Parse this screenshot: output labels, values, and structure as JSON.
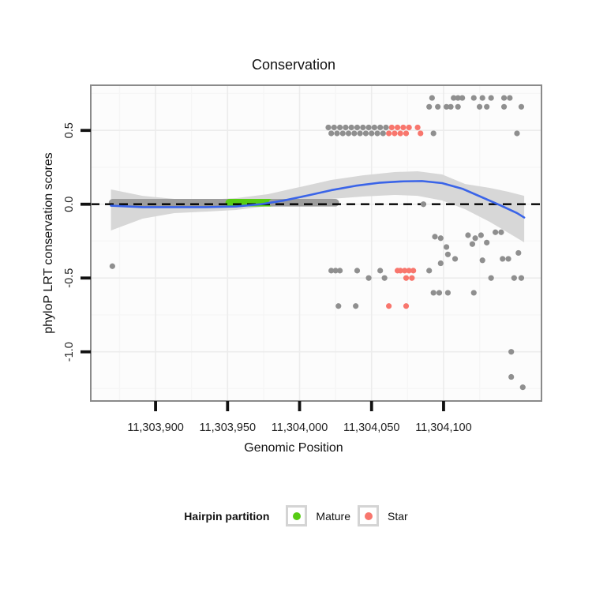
{
  "page": {
    "background": "#ffffff"
  },
  "chart_data": {
    "type": "scatter",
    "title": "Conservation",
    "xlabel": "Genomic Position",
    "ylabel": "phyloP LRT conservation scores",
    "xlim": [
      11303855,
      11304168
    ],
    "ylim": [
      -1.333,
      0.806
    ],
    "x_ticks": [
      {
        "value": 11303900,
        "label": "11,303,900"
      },
      {
        "value": 11303950,
        "label": "11,303,950"
      },
      {
        "value": 11304000,
        "label": "11,304,000"
      },
      {
        "value": 11304050,
        "label": "11,304,050"
      },
      {
        "value": 11304100,
        "label": "11,304,100"
      }
    ],
    "y_ticks": [
      {
        "value": 0.5,
        "label": "0.5"
      },
      {
        "value": 0.0,
        "label": "0.0"
      },
      {
        "value": -0.5,
        "label": "-0.5"
      },
      {
        "value": -1.0,
        "label": "-1.0"
      }
    ],
    "x_minor": [
      11303875,
      11303925,
      11303975,
      11304025,
      11304075,
      11304125
    ],
    "y_minor": [
      0.75,
      0.25,
      -0.25,
      -0.75,
      -1.25
    ],
    "grid": true,
    "legend_position": "bottom",
    "colors": {
      "mature": "#57CC14",
      "star": "#F8766D",
      "other": "#8F8F8F",
      "zero_run_other": "#9D9D9D",
      "smooth_line": "#3A64E8",
      "ci_ribbon": "#D7D7D7",
      "zero_line": "#000000",
      "panel_bg": "#FCFCFC",
      "grid_major": "#ECECEC",
      "grid_minor": "#F6F6F6",
      "panel_border": "#8A8A8A"
    },
    "zero_line": {
      "y": 0.0,
      "style": "dashed"
    },
    "zero_runs": [
      {
        "from": 11303870,
        "to": 11303951,
        "score": 0.01,
        "partition": "other"
      },
      {
        "from": 11303951,
        "to": 11303981,
        "score": 0.01,
        "partition": "mature"
      },
      {
        "from": 11303981,
        "to": 11304025,
        "score": 0.01,
        "partition": "other"
      }
    ],
    "smooth_line": [
      [
        11303869,
        -0.01
      ],
      [
        11303891,
        -0.02
      ],
      [
        11303913,
        -0.02
      ],
      [
        11303935,
        -0.02
      ],
      [
        11303956,
        -0.015
      ],
      [
        11303973,
        0.0
      ],
      [
        11303989,
        0.025
      ],
      [
        11304006,
        0.06
      ],
      [
        11304022,
        0.095
      ],
      [
        11304039,
        0.125
      ],
      [
        11304055,
        0.145
      ],
      [
        11304072,
        0.155
      ],
      [
        11304085,
        0.157
      ],
      [
        11304099,
        0.143
      ],
      [
        11304113,
        0.105
      ],
      [
        11304126,
        0.05
      ],
      [
        11304140,
        -0.01
      ],
      [
        11304151,
        -0.06
      ],
      [
        11304156,
        -0.09
      ]
    ],
    "ci_ribbon": {
      "top": [
        [
          11303869,
          0.1
        ],
        [
          11303891,
          0.057
        ],
        [
          11303913,
          0.036
        ],
        [
          11303935,
          0.03
        ],
        [
          11303956,
          0.041
        ],
        [
          11303978,
          0.068
        ],
        [
          11304000,
          0.116
        ],
        [
          11304022,
          0.164
        ],
        [
          11304044,
          0.196
        ],
        [
          11304066,
          0.218
        ],
        [
          11304082,
          0.223
        ],
        [
          11304099,
          0.202
        ],
        [
          11304115,
          0.137
        ],
        [
          11304132,
          0.111
        ],
        [
          11304145,
          0.084
        ],
        [
          11304156,
          0.057
        ]
      ],
      "bottom": [
        [
          11303869,
          -0.178
        ],
        [
          11303891,
          -0.098
        ],
        [
          11303913,
          -0.06
        ],
        [
          11303935,
          -0.05
        ],
        [
          11303956,
          -0.039
        ],
        [
          11303978,
          -0.012
        ],
        [
          11304000,
          0.014
        ],
        [
          11304022,
          0.036
        ],
        [
          11304044,
          0.052
        ],
        [
          11304066,
          0.063
        ],
        [
          11304082,
          0.057
        ],
        [
          11304099,
          0.025
        ],
        [
          11304115,
          -0.034
        ],
        [
          11304132,
          -0.119
        ],
        [
          11304145,
          -0.194
        ],
        [
          11304156,
          -0.258
        ]
      ]
    },
    "points_format": "[genomic_position, phyloP_score, partition: g=other(grey), s=Star, m=Mature]",
    "points": [
      [
        11304020,
        0.52,
        "g"
      ],
      [
        11304022,
        0.48,
        "g"
      ],
      [
        11304024,
        0.52,
        "g"
      ],
      [
        11304026,
        0.48,
        "g"
      ],
      [
        11304028,
        0.52,
        "g"
      ],
      [
        11304030,
        0.48,
        "g"
      ],
      [
        11304032,
        0.52,
        "g"
      ],
      [
        11304034,
        0.48,
        "g"
      ],
      [
        11304036,
        0.52,
        "g"
      ],
      [
        11304038,
        0.48,
        "g"
      ],
      [
        11304040,
        0.52,
        "g"
      ],
      [
        11304042,
        0.48,
        "g"
      ],
      [
        11304044,
        0.52,
        "g"
      ],
      [
        11304046,
        0.48,
        "g"
      ],
      [
        11304048,
        0.52,
        "g"
      ],
      [
        11304050,
        0.48,
        "g"
      ],
      [
        11304052,
        0.52,
        "g"
      ],
      [
        11304054,
        0.48,
        "g"
      ],
      [
        11304056,
        0.52,
        "g"
      ],
      [
        11304058,
        0.48,
        "g"
      ],
      [
        11304060,
        0.52,
        "g"
      ],
      [
        11304062,
        0.48,
        "s"
      ],
      [
        11304064,
        0.52,
        "s"
      ],
      [
        11304066,
        0.48,
        "s"
      ],
      [
        11304068,
        0.52,
        "s"
      ],
      [
        11304070,
        0.48,
        "s"
      ],
      [
        11304072,
        0.52,
        "s"
      ],
      [
        11304074,
        0.48,
        "s"
      ],
      [
        11304076,
        0.52,
        "s"
      ],
      [
        11304082,
        0.52,
        "s"
      ],
      [
        11304084,
        0.48,
        "s"
      ],
      [
        11304093,
        0.48,
        "g"
      ],
      [
        11304151,
        0.48,
        "g"
      ],
      [
        11304092,
        0.72,
        "g"
      ],
      [
        11304107,
        0.72,
        "g"
      ],
      [
        11304110,
        0.72,
        "g"
      ],
      [
        11304113,
        0.72,
        "g"
      ],
      [
        11304121,
        0.72,
        "g"
      ],
      [
        11304127,
        0.72,
        "g"
      ],
      [
        11304133,
        0.72,
        "g"
      ],
      [
        11304142,
        0.72,
        "g"
      ],
      [
        11304146,
        0.72,
        "g"
      ],
      [
        11304090,
        0.66,
        "g"
      ],
      [
        11304096,
        0.66,
        "g"
      ],
      [
        11304102,
        0.66,
        "g"
      ],
      [
        11304105,
        0.66,
        "g"
      ],
      [
        11304110,
        0.66,
        "g"
      ],
      [
        11304125,
        0.66,
        "g"
      ],
      [
        11304130,
        0.66,
        "g"
      ],
      [
        11304142,
        0.66,
        "g"
      ],
      [
        11304154,
        0.66,
        "g"
      ],
      [
        11304086,
        0.0,
        "g"
      ],
      [
        11304022,
        -0.45,
        "g"
      ],
      [
        11304025,
        -0.45,
        "g"
      ],
      [
        11304028,
        -0.45,
        "g"
      ],
      [
        11304040,
        -0.45,
        "g"
      ],
      [
        11304056,
        -0.45,
        "g"
      ],
      [
        11304068,
        -0.45,
        "s"
      ],
      [
        11304070,
        -0.45,
        "s"
      ],
      [
        11304073,
        -0.45,
        "s"
      ],
      [
        11304076,
        -0.45,
        "s"
      ],
      [
        11304079,
        -0.45,
        "s"
      ],
      [
        11304090,
        -0.45,
        "g"
      ],
      [
        11304048,
        -0.5,
        "g"
      ],
      [
        11304059,
        -0.5,
        "g"
      ],
      [
        11304074,
        -0.5,
        "s"
      ],
      [
        11304078,
        -0.5,
        "s"
      ],
      [
        11304027,
        -0.69,
        "g"
      ],
      [
        11304039,
        -0.69,
        "g"
      ],
      [
        11304062,
        -0.69,
        "s"
      ],
      [
        11304074,
        -0.69,
        "s"
      ],
      [
        11304093,
        -0.6,
        "g"
      ],
      [
        11304097,
        -0.6,
        "g"
      ],
      [
        11304103,
        -0.6,
        "g"
      ],
      [
        11304121,
        -0.6,
        "g"
      ],
      [
        11304133,
        -0.5,
        "g"
      ],
      [
        11304149,
        -0.5,
        "g"
      ],
      [
        11304154,
        -0.5,
        "g"
      ],
      [
        11304094,
        -0.22,
        "g"
      ],
      [
        11304098,
        -0.23,
        "g"
      ],
      [
        11304102,
        -0.29,
        "g"
      ],
      [
        11304103,
        -0.34,
        "g"
      ],
      [
        11304108,
        -0.37,
        "g"
      ],
      [
        11304098,
        -0.4,
        "g"
      ],
      [
        11304117,
        -0.21,
        "g"
      ],
      [
        11304120,
        -0.27,
        "g"
      ],
      [
        11304122,
        -0.23,
        "g"
      ],
      [
        11304126,
        -0.21,
        "g"
      ],
      [
        11304130,
        -0.26,
        "g"
      ],
      [
        11304136,
        -0.19,
        "g"
      ],
      [
        11304140,
        -0.19,
        "g"
      ],
      [
        11304127,
        -0.38,
        "g"
      ],
      [
        11304141,
        -0.37,
        "g"
      ],
      [
        11304145,
        -0.37,
        "g"
      ],
      [
        11304152,
        -0.33,
        "g"
      ],
      [
        11304147,
        -1.0,
        "g"
      ],
      [
        11304147,
        -1.17,
        "g"
      ],
      [
        11304155,
        -1.24,
        "g"
      ],
      [
        11303870,
        -0.42,
        "g"
      ]
    ],
    "legend": {
      "title": "Hairpin partition",
      "entries": [
        {
          "label": "Mature",
          "color": "#57CC14"
        },
        {
          "label": "Star",
          "color": "#F8766D"
        }
      ]
    }
  }
}
